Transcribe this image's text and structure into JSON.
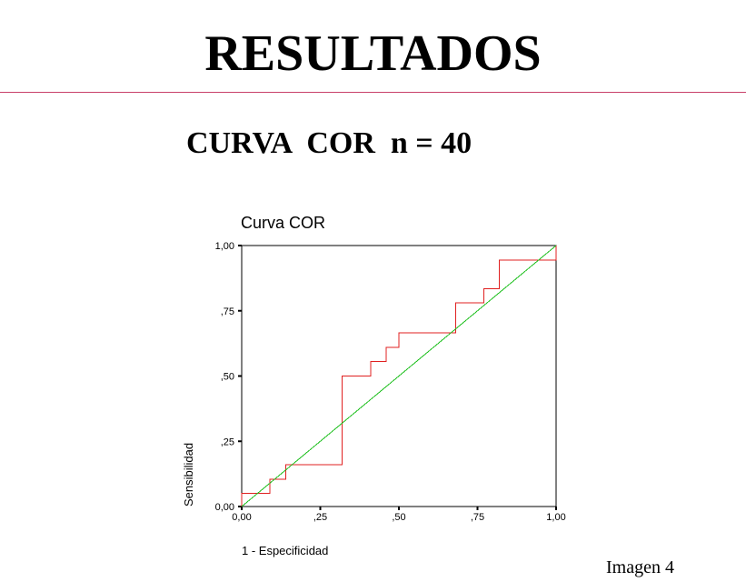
{
  "slide": {
    "title": "RESULTADOS",
    "subtitle": "CURVA  COR  n = 40",
    "caption": "Imagen 4",
    "rule_color": "#c8406a"
  },
  "chart_data": {
    "type": "line",
    "title": "Curva COR",
    "xlabel": "1 - Especificidad",
    "ylabel": "Sensibilidad",
    "xlim": [
      0,
      1
    ],
    "ylim": [
      0,
      1
    ],
    "xticks": [
      0,
      0.25,
      0.5,
      0.75,
      1
    ],
    "yticks": [
      0,
      0.25,
      0.5,
      0.75,
      1
    ],
    "xtick_labels": [
      "0,00",
      ",25",
      ",50",
      ",75",
      "1,00"
    ],
    "ytick_labels": [
      "0,00",
      ",25",
      ",50",
      ",75",
      "1,00"
    ],
    "grid": false,
    "legend": "none",
    "series": [
      {
        "color": "#e02020",
        "step": true,
        "x": [
          0.0,
          0.0,
          0.09,
          0.09,
          0.14,
          0.14,
          0.32,
          0.32,
          0.41,
          0.41,
          0.46,
          0.46,
          0.5,
          0.5,
          0.68,
          0.68,
          0.77,
          0.77,
          0.82,
          0.82,
          1.0,
          1.0
        ],
        "y": [
          0.0,
          0.05,
          0.05,
          0.105,
          0.105,
          0.16,
          0.16,
          0.5,
          0.5,
          0.555,
          0.555,
          0.61,
          0.61,
          0.665,
          0.665,
          0.78,
          0.78,
          0.835,
          0.835,
          0.945,
          0.945,
          1.0
        ]
      },
      {
        "color": "#20c020",
        "step": false,
        "x": [
          0,
          1
        ],
        "y": [
          0,
          1
        ]
      }
    ]
  }
}
